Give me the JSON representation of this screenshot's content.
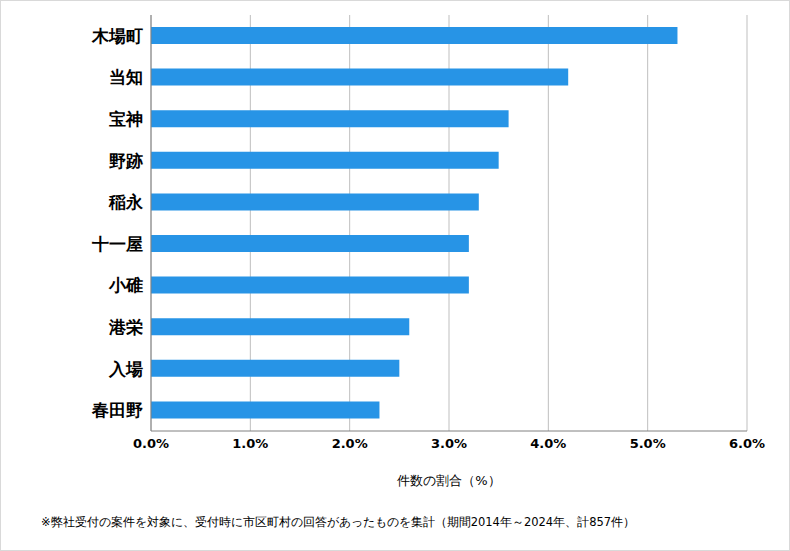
{
  "chart_data": {
    "type": "bar",
    "orientation": "horizontal",
    "categories": [
      "木場町",
      "当知",
      "宝神",
      "野跡",
      "稲永",
      "十一屋",
      "小碓",
      "港栄",
      "入場",
      "春田野"
    ],
    "values": [
      5.3,
      4.2,
      3.6,
      3.5,
      3.3,
      3.2,
      3.2,
      2.6,
      2.5,
      2.3
    ],
    "color": "#2794e6",
    "xlabel": "件数の割合（%）",
    "xlim": [
      0,
      6
    ],
    "xticks": [
      {
        "value": 0,
        "label": "0.0%"
      },
      {
        "value": 1,
        "label": "1.0%"
      },
      {
        "value": 2,
        "label": "2.0%"
      },
      {
        "value": 3,
        "label": "3.0%"
      },
      {
        "value": 4,
        "label": "4.0%"
      },
      {
        "value": 5,
        "label": "5.0%"
      },
      {
        "value": 6,
        "label": "6.0%"
      }
    ],
    "grid": true,
    "annotations": [
      "※弊社受付の案件を対象に、受付時に市区町村の回答があったものを集計（期間2014年～2024年、計857件）"
    ]
  }
}
